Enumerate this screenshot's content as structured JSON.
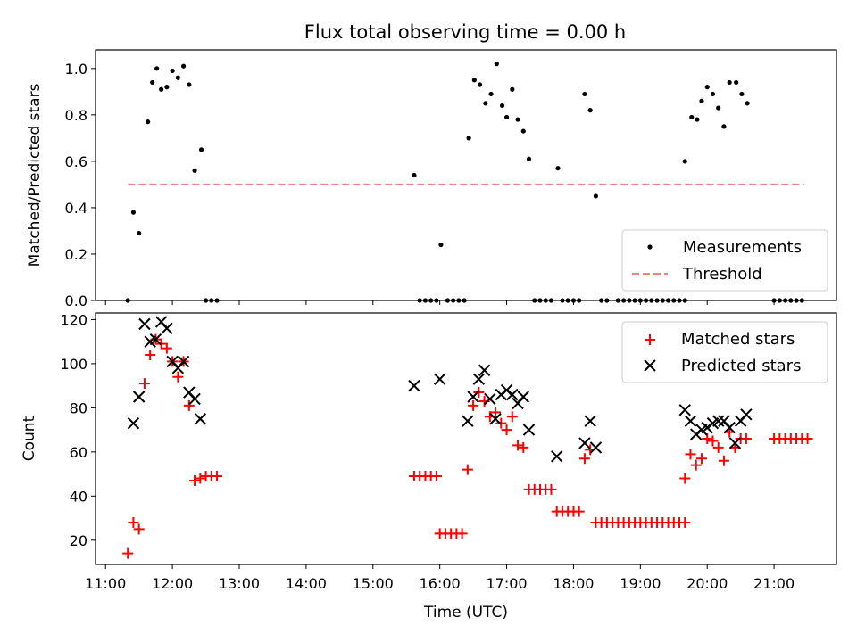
{
  "title": "Flux total observing time = 0.00 h",
  "chart_data": [
    {
      "type": "scatter",
      "ylabel": "Matched/Predicted stars",
      "xlim": [
        "10:51",
        "21:56"
      ],
      "ylim": [
        0,
        1.08
      ],
      "yticks": [
        0.0,
        0.2,
        0.4,
        0.6,
        0.8,
        1.0
      ],
      "ytick_labels": [
        "0.0",
        "0.2",
        "0.4",
        "0.6",
        "0.8",
        "1.0"
      ],
      "legend": "lower-right",
      "legend_entries": [
        "Measurements",
        "Threshold"
      ],
      "threshold": {
        "name": "Threshold",
        "value": 0.5,
        "x": [
          "11:20",
          "21:27"
        ],
        "color": "#f08080"
      },
      "series": [
        {
          "name": "Measurements",
          "color": "#000000",
          "points": [
            [
              "11:20",
              0.0
            ],
            [
              "11:25",
              0.38
            ],
            [
              "11:30",
              0.29
            ],
            [
              "11:38",
              0.77
            ],
            [
              "11:42",
              0.94
            ],
            [
              "11:46",
              1.0
            ],
            [
              "11:50",
              0.91
            ],
            [
              "11:55",
              0.92
            ],
            [
              "12:00",
              0.99
            ],
            [
              "12:05",
              0.96
            ],
            [
              "12:10",
              1.01
            ],
            [
              "12:15",
              0.93
            ],
            [
              "12:20",
              0.56
            ],
            [
              "12:26",
              0.65
            ],
            [
              "12:30",
              0.0
            ],
            [
              "12:35",
              0.0
            ],
            [
              "12:40",
              0.0
            ],
            [
              "15:37",
              0.54
            ],
            [
              "15:42",
              0.0
            ],
            [
              "15:47",
              0.0
            ],
            [
              "15:52",
              0.0
            ],
            [
              "15:57",
              0.0
            ],
            [
              "16:01",
              0.24
            ],
            [
              "16:07",
              0.0
            ],
            [
              "16:12",
              0.0
            ],
            [
              "16:17",
              0.0
            ],
            [
              "16:22",
              0.0
            ],
            [
              "16:26",
              0.7
            ],
            [
              "16:31",
              0.95
            ],
            [
              "16:36",
              0.93
            ],
            [
              "16:41",
              0.85
            ],
            [
              "16:46",
              0.89
            ],
            [
              "16:51",
              1.02
            ],
            [
              "16:56",
              0.84
            ],
            [
              "17:00",
              0.79
            ],
            [
              "17:05",
              0.91
            ],
            [
              "17:10",
              0.78
            ],
            [
              "17:15",
              0.73
            ],
            [
              "17:20",
              0.61
            ],
            [
              "17:25",
              0.0
            ],
            [
              "17:30",
              0.0
            ],
            [
              "17:35",
              0.0
            ],
            [
              "17:40",
              0.0
            ],
            [
              "17:46",
              0.57
            ],
            [
              "17:50",
              0.0
            ],
            [
              "17:55",
              0.0
            ],
            [
              "18:00",
              0.0
            ],
            [
              "18:05",
              0.0
            ],
            [
              "18:10",
              0.89
            ],
            [
              "18:15",
              0.82
            ],
            [
              "18:20",
              0.45
            ],
            [
              "18:25",
              0.0
            ],
            [
              "18:30",
              0.0
            ],
            [
              "18:40",
              0.0
            ],
            [
              "18:45",
              0.0
            ],
            [
              "18:50",
              0.0
            ],
            [
              "18:55",
              0.0
            ],
            [
              "19:00",
              0.0
            ],
            [
              "19:05",
              0.0
            ],
            [
              "19:10",
              0.0
            ],
            [
              "19:15",
              0.0
            ],
            [
              "19:20",
              0.0
            ],
            [
              "19:25",
              0.0
            ],
            [
              "19:30",
              0.0
            ],
            [
              "19:35",
              0.0
            ],
            [
              "19:40",
              0.0
            ],
            [
              "19:40",
              0.6
            ],
            [
              "19:46",
              0.79
            ],
            [
              "19:51",
              0.78
            ],
            [
              "19:55",
              0.86
            ],
            [
              "20:00",
              0.92
            ],
            [
              "20:05",
              0.89
            ],
            [
              "20:10",
              0.83
            ],
            [
              "20:15",
              0.75
            ],
            [
              "20:20",
              0.94
            ],
            [
              "20:26",
              0.94
            ],
            [
              "20:31",
              0.89
            ],
            [
              "20:36",
              0.85
            ],
            [
              "21:00",
              0.0
            ],
            [
              "21:05",
              0.0
            ],
            [
              "21:10",
              0.0
            ],
            [
              "21:15",
              0.0
            ],
            [
              "21:20",
              0.0
            ],
            [
              "21:25",
              0.0
            ]
          ]
        }
      ]
    },
    {
      "type": "scatter",
      "xlabel": "Time (UTC)",
      "ylabel": "Count",
      "xlim": [
        "10:51",
        "21:56"
      ],
      "ylim": [
        9,
        123
      ],
      "yticks": [
        20,
        40,
        60,
        80,
        100,
        120
      ],
      "xtick_labels": [
        "11:00",
        "12:00",
        "13:00",
        "14:00",
        "15:00",
        "16:00",
        "17:00",
        "18:00",
        "19:00",
        "20:00",
        "21:00"
      ],
      "legend": "upper-right",
      "legend_entries": [
        "Matched stars",
        "Predicted stars"
      ],
      "series": [
        {
          "name": "Matched stars",
          "color": "#ff0000",
          "marker": "plus",
          "points": [
            [
              "11:20",
              14
            ],
            [
              "11:25",
              28
            ],
            [
              "11:30",
              25
            ],
            [
              "11:35",
              91
            ],
            [
              "11:40",
              104
            ],
            [
              "11:45",
              111
            ],
            [
              "11:50",
              109
            ],
            [
              "11:55",
              107
            ],
            [
              "12:00",
              101
            ],
            [
              "12:05",
              94
            ],
            [
              "12:10",
              101
            ],
            [
              "12:15",
              81
            ],
            [
              "12:20",
              47
            ],
            [
              "12:25",
              48
            ],
            [
              "12:30",
              49
            ],
            [
              "12:35",
              49
            ],
            [
              "12:40",
              49
            ],
            [
              "15:37",
              49
            ],
            [
              "15:42",
              49
            ],
            [
              "15:47",
              49
            ],
            [
              "15:52",
              49
            ],
            [
              "15:57",
              49
            ],
            [
              "16:00",
              23
            ],
            [
              "16:05",
              23
            ],
            [
              "16:10",
              23
            ],
            [
              "16:15",
              23
            ],
            [
              "16:20",
              23
            ],
            [
              "16:25",
              52
            ],
            [
              "16:30",
              81
            ],
            [
              "16:35",
              87
            ],
            [
              "16:40",
              83
            ],
            [
              "16:45",
              76
            ],
            [
              "16:50",
              78
            ],
            [
              "16:55",
              73
            ],
            [
              "17:00",
              70
            ],
            [
              "17:05",
              76
            ],
            [
              "17:10",
              63
            ],
            [
              "17:15",
              62
            ],
            [
              "17:20",
              43
            ],
            [
              "17:25",
              43
            ],
            [
              "17:30",
              43
            ],
            [
              "17:35",
              43
            ],
            [
              "17:40",
              43
            ],
            [
              "17:45",
              33
            ],
            [
              "17:50",
              33
            ],
            [
              "17:55",
              33
            ],
            [
              "18:00",
              33
            ],
            [
              "18:05",
              33
            ],
            [
              "18:10",
              57
            ],
            [
              "18:15",
              61
            ],
            [
              "18:20",
              28
            ],
            [
              "18:25",
              28
            ],
            [
              "18:30",
              28
            ],
            [
              "18:35",
              28
            ],
            [
              "18:40",
              28
            ],
            [
              "18:45",
              28
            ],
            [
              "18:50",
              28
            ],
            [
              "18:55",
              28
            ],
            [
              "19:00",
              28
            ],
            [
              "19:05",
              28
            ],
            [
              "19:10",
              28
            ],
            [
              "19:15",
              28
            ],
            [
              "19:20",
              28
            ],
            [
              "19:25",
              28
            ],
            [
              "19:30",
              28
            ],
            [
              "19:35",
              28
            ],
            [
              "19:40",
              28
            ],
            [
              "19:40",
              48
            ],
            [
              "19:45",
              59
            ],
            [
              "19:50",
              54
            ],
            [
              "19:55",
              57
            ],
            [
              "20:00",
              66
            ],
            [
              "20:05",
              65
            ],
            [
              "20:10",
              62
            ],
            [
              "20:15",
              56
            ],
            [
              "20:20",
              69
            ],
            [
              "20:25",
              62
            ],
            [
              "20:30",
              66
            ],
            [
              "20:35",
              66
            ],
            [
              "21:00",
              66
            ],
            [
              "21:05",
              66
            ],
            [
              "21:10",
              66
            ],
            [
              "21:15",
              66
            ],
            [
              "21:20",
              66
            ],
            [
              "21:25",
              66
            ],
            [
              "21:30",
              66
            ]
          ]
        },
        {
          "name": "Predicted stars",
          "color": "#000000",
          "marker": "x",
          "points": [
            [
              "11:25",
              73
            ],
            [
              "11:30",
              85
            ],
            [
              "11:35",
              118
            ],
            [
              "11:40",
              110
            ],
            [
              "11:45",
              111
            ],
            [
              "11:50",
              119
            ],
            [
              "11:55",
              116
            ],
            [
              "12:00",
              101
            ],
            [
              "12:05",
              98
            ],
            [
              "12:10",
              101
            ],
            [
              "12:15",
              87
            ],
            [
              "12:20",
              84
            ],
            [
              "12:25",
              75
            ],
            [
              "15:37",
              90
            ],
            [
              "16:00",
              93
            ],
            [
              "16:25",
              74
            ],
            [
              "16:30",
              85
            ],
            [
              "16:35",
              93
            ],
            [
              "16:40",
              97
            ],
            [
              "16:45",
              84
            ],
            [
              "16:50",
              75
            ],
            [
              "16:55",
              86
            ],
            [
              "17:00",
              88
            ],
            [
              "17:05",
              86
            ],
            [
              "17:10",
              82
            ],
            [
              "17:15",
              85
            ],
            [
              "17:20",
              70
            ],
            [
              "17:45",
              58
            ],
            [
              "18:10",
              64
            ],
            [
              "18:15",
              74
            ],
            [
              "18:20",
              62
            ],
            [
              "19:40",
              79
            ],
            [
              "19:45",
              74
            ],
            [
              "19:50",
              68
            ],
            [
              "19:55",
              70
            ],
            [
              "20:00",
              71
            ],
            [
              "20:05",
              73
            ],
            [
              "20:10",
              74
            ],
            [
              "20:15",
              74
            ],
            [
              "20:20",
              71
            ],
            [
              "20:25",
              64
            ],
            [
              "20:30",
              74
            ],
            [
              "20:35",
              77
            ]
          ]
        }
      ]
    }
  ]
}
